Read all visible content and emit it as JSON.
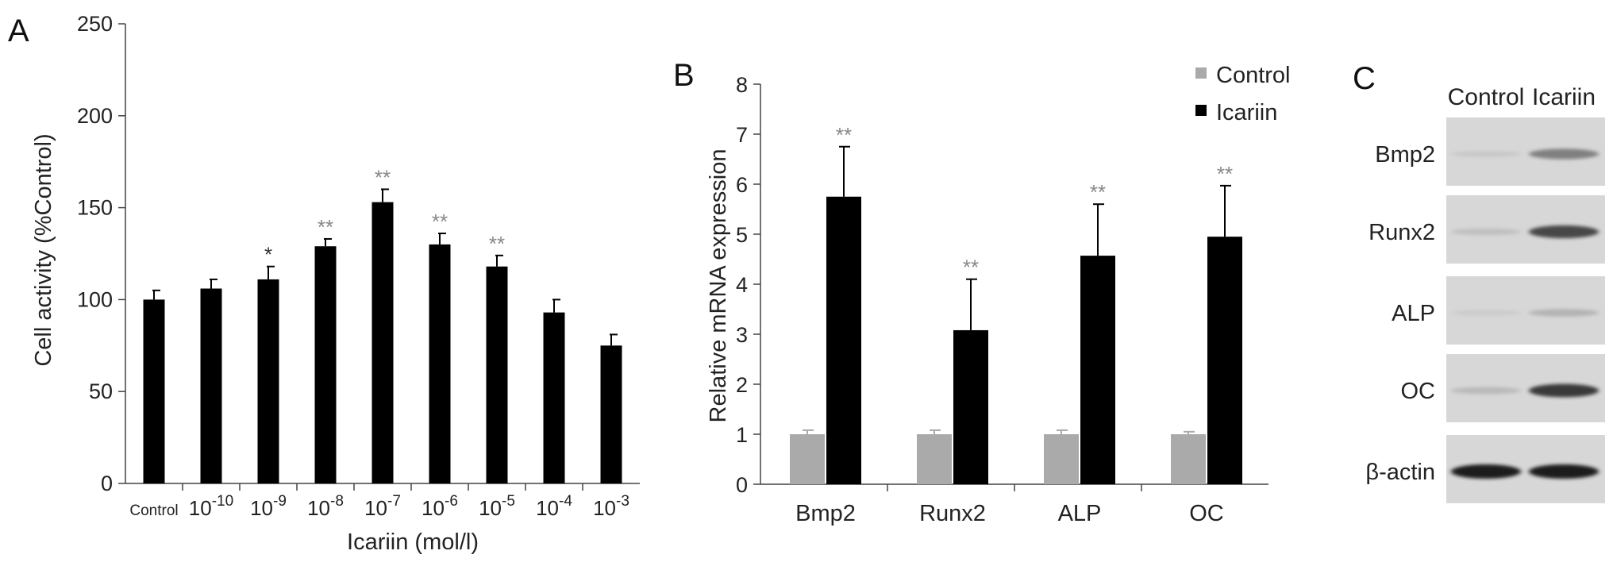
{
  "chart_data": [
    {
      "panel": "A",
      "type": "bar",
      "xlabel": "Icariin (mol/l)",
      "ylabel": "Cell activity (%Control)",
      "ylim": [
        0,
        250
      ],
      "yticks": [
        "0",
        "50",
        "100",
        "150",
        "200",
        "250"
      ],
      "categories": [
        "Control",
        "10-10",
        "10-9",
        "10-8",
        "10-7",
        "10-6",
        "10-5",
        "10-4",
        "10-3"
      ],
      "category_labels": [
        {
          "base": "Control",
          "sup": ""
        },
        {
          "base": "10",
          "sup": "-10"
        },
        {
          "base": "10",
          "sup": "-9"
        },
        {
          "base": "10",
          "sup": "-8"
        },
        {
          "base": "10",
          "sup": "-7"
        },
        {
          "base": "10",
          "sup": "-6"
        },
        {
          "base": "10",
          "sup": "-5"
        },
        {
          "base": "10",
          "sup": "-4"
        },
        {
          "base": "10",
          "sup": "-3"
        }
      ],
      "values": [
        100,
        106,
        111,
        129,
        153,
        130,
        118,
        93,
        75
      ],
      "errors": [
        5,
        5,
        7,
        4,
        7,
        6,
        6,
        7,
        6
      ],
      "significance": [
        "",
        "",
        "*",
        "**",
        "**",
        "**",
        "**",
        "",
        ""
      ],
      "bar_color": "#000000"
    },
    {
      "panel": "B",
      "type": "bar",
      "xlabel": "",
      "ylabel": "Relative mRNA expression",
      "ylim": [
        0,
        8
      ],
      "yticks": [
        "0",
        "1",
        "2",
        "3",
        "4",
        "5",
        "6",
        "7",
        "8"
      ],
      "categories": [
        "Bmp2",
        "Runx2",
        "ALP",
        "OC"
      ],
      "legend_position": "top-right",
      "series": [
        {
          "name": "Control",
          "values": [
            1,
            1,
            1,
            1
          ],
          "errors": [
            0.08,
            0.08,
            0.08,
            0.05
          ],
          "significance": [
            "",
            "",
            "",
            ""
          ],
          "color": "#aaaaaa"
        },
        {
          "name": "Icariin",
          "values": [
            5.75,
            3.08,
            4.57,
            4.95
          ],
          "errors": [
            1.0,
            1.02,
            1.03,
            1.02
          ],
          "significance": [
            "**",
            "**",
            "**",
            "**"
          ],
          "color": "#000000"
        }
      ]
    }
  ],
  "western_blot": {
    "panel": "C",
    "columns": [
      "Control",
      "Icariin"
    ],
    "rows": [
      {
        "label": "Bmp2",
        "intensity": [
          0.12,
          0.6
        ]
      },
      {
        "label": "Runx2",
        "intensity": [
          0.2,
          0.85
        ]
      },
      {
        "label": "ALP",
        "intensity": [
          0.08,
          0.3
        ]
      },
      {
        "label": "OC",
        "intensity": [
          0.25,
          0.9
        ]
      },
      {
        "label": "β-actin",
        "intensity": [
          1.0,
          1.0
        ]
      }
    ]
  },
  "colors": {
    "bar": "#000000",
    "control": "#aaaaaa",
    "significance": "#888888",
    "blot_background": "#d7d7d7"
  }
}
